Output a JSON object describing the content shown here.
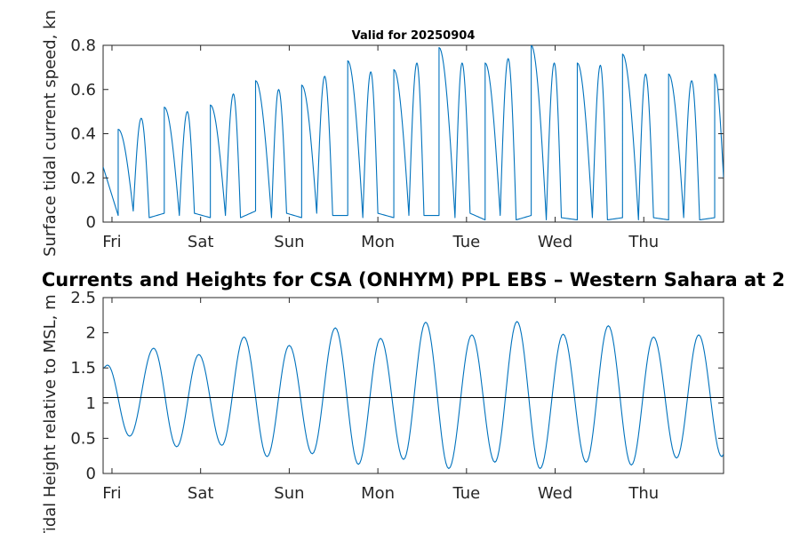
{
  "figure": {
    "main_title": "Currents and Heights for CSA (ONHYM) PPL EBS  – Western Sahara at 2",
    "line_color": "#0072bd",
    "ref_line_color": "#000000"
  },
  "chart_data": [
    {
      "type": "line",
      "title": "Valid for 20250904",
      "ylabel": "Surface tidal current speed, kn",
      "xlabel": "",
      "ylim": [
        0,
        0.8
      ],
      "yticks": [
        "0",
        "0.2",
        "0.4",
        "0.6",
        "0.8"
      ],
      "xlim": [
        0,
        7
      ],
      "x_ticks": [
        {
          "pos": 0.1,
          "label": "Fri"
        },
        {
          "pos": 1.1,
          "label": "Sat"
        },
        {
          "pos": 2.1,
          "label": "Sun"
        },
        {
          "pos": 3.1,
          "label": "Mon"
        },
        {
          "pos": 4.1,
          "label": "Tue"
        },
        {
          "pos": 5.1,
          "label": "Wed"
        },
        {
          "pos": 6.1,
          "label": "Thu"
        }
      ],
      "grid": false,
      "series": [
        {
          "points": [
            [
              0.0,
              0.25
            ],
            [
              0.17,
              0.03
            ],
            [
              0.34,
              0.05
            ],
            [
              0.52,
              0.02
            ],
            [
              0.69,
              0.04
            ],
            [
              0.86,
              0.03
            ],
            [
              1.03,
              0.04
            ],
            [
              1.21,
              0.02
            ],
            [
              1.38,
              0.03
            ],
            [
              1.55,
              0.02
            ],
            [
              1.72,
              0.05
            ],
            [
              1.9,
              0.02
            ],
            [
              2.07,
              0.04
            ],
            [
              2.24,
              0.02
            ],
            [
              2.41,
              0.04
            ],
            [
              2.59,
              0.03
            ],
            [
              2.76,
              0.03
            ],
            [
              2.93,
              0.02
            ],
            [
              3.1,
              0.04
            ],
            [
              3.28,
              0.02
            ],
            [
              3.45,
              0.03
            ],
            [
              3.62,
              0.03
            ],
            [
              3.79,
              0.03
            ],
            [
              3.97,
              0.02
            ],
            [
              4.14,
              0.04
            ],
            [
              4.31,
              0.01
            ],
            [
              4.48,
              0.03
            ],
            [
              4.66,
              0.01
            ],
            [
              4.83,
              0.03
            ],
            [
              5.0,
              0.01
            ],
            [
              5.17,
              0.02
            ],
            [
              5.35,
              0.01
            ],
            [
              5.52,
              0.02
            ],
            [
              5.69,
              0.01
            ],
            [
              5.86,
              0.02
            ],
            [
              6.04,
              0.01
            ],
            [
              6.21,
              0.02
            ],
            [
              6.38,
              0.01
            ],
            [
              6.55,
              0.02
            ],
            [
              6.73,
              0.01
            ],
            [
              6.9,
              0.02
            ],
            [
              7.0,
              0.2
            ]
          ],
          "peaks": [
            [
              0.17,
              0.42
            ],
            [
              0.43,
              0.47
            ],
            [
              0.69,
              0.52
            ],
            [
              0.95,
              0.5
            ],
            [
              1.21,
              0.53
            ],
            [
              1.47,
              0.58
            ],
            [
              1.72,
              0.64
            ],
            [
              1.98,
              0.6
            ],
            [
              2.24,
              0.62
            ],
            [
              2.5,
              0.66
            ],
            [
              2.76,
              0.73
            ],
            [
              3.02,
              0.68
            ],
            [
              3.28,
              0.69
            ],
            [
              3.54,
              0.72
            ],
            [
              3.79,
              0.79
            ],
            [
              4.05,
              0.72
            ],
            [
              4.31,
              0.72
            ],
            [
              4.57,
              0.74
            ],
            [
              4.83,
              0.8
            ],
            [
              5.09,
              0.72
            ],
            [
              5.35,
              0.72
            ],
            [
              5.61,
              0.71
            ],
            [
              5.86,
              0.76
            ],
            [
              6.12,
              0.67
            ],
            [
              6.38,
              0.67
            ],
            [
              6.64,
              0.64
            ],
            [
              6.9,
              0.67
            ]
          ]
        }
      ]
    },
    {
      "type": "line",
      "title": "",
      "ylabel": "Tidal Height relative to MSL, m",
      "xlabel": "",
      "ylim": [
        0,
        2.5
      ],
      "yticks": [
        "0",
        "0.5",
        "1",
        "1.5",
        "2",
        "2.5"
      ],
      "xlim": [
        0,
        7
      ],
      "x_ticks": [
        {
          "pos": 0.1,
          "label": "Fri"
        },
        {
          "pos": 1.1,
          "label": "Sat"
        },
        {
          "pos": 2.1,
          "label": "Sun"
        },
        {
          "pos": 3.1,
          "label": "Mon"
        },
        {
          "pos": 4.1,
          "label": "Tue"
        },
        {
          "pos": 5.1,
          "label": "Wed"
        },
        {
          "pos": 6.1,
          "label": "Thu"
        }
      ],
      "reference_line": 1.08,
      "grid": false,
      "series": [
        {
          "extrema": [
            [
              0.0,
              1.5
            ],
            [
              0.05,
              1.54
            ],
            [
              0.3,
              0.53
            ],
            [
              0.57,
              1.78
            ],
            [
              0.83,
              0.38
            ],
            [
              1.08,
              1.69
            ],
            [
              1.34,
              0.4
            ],
            [
              1.59,
              1.94
            ],
            [
              1.85,
              0.24
            ],
            [
              2.1,
              1.82
            ],
            [
              2.36,
              0.28
            ],
            [
              2.62,
              2.07
            ],
            [
              2.88,
              0.13
            ],
            [
              3.13,
              1.92
            ],
            [
              3.39,
              0.2
            ],
            [
              3.64,
              2.15
            ],
            [
              3.9,
              0.07
            ],
            [
              4.16,
              1.97
            ],
            [
              4.42,
              0.16
            ],
            [
              4.67,
              2.16
            ],
            [
              4.93,
              0.07
            ],
            [
              5.19,
              1.98
            ],
            [
              5.45,
              0.16
            ],
            [
              5.7,
              2.1
            ],
            [
              5.96,
              0.12
            ],
            [
              6.21,
              1.94
            ],
            [
              6.47,
              0.22
            ],
            [
              6.72,
              1.97
            ],
            [
              6.98,
              0.24
            ],
            [
              7.0,
              0.27
            ]
          ]
        }
      ]
    }
  ]
}
